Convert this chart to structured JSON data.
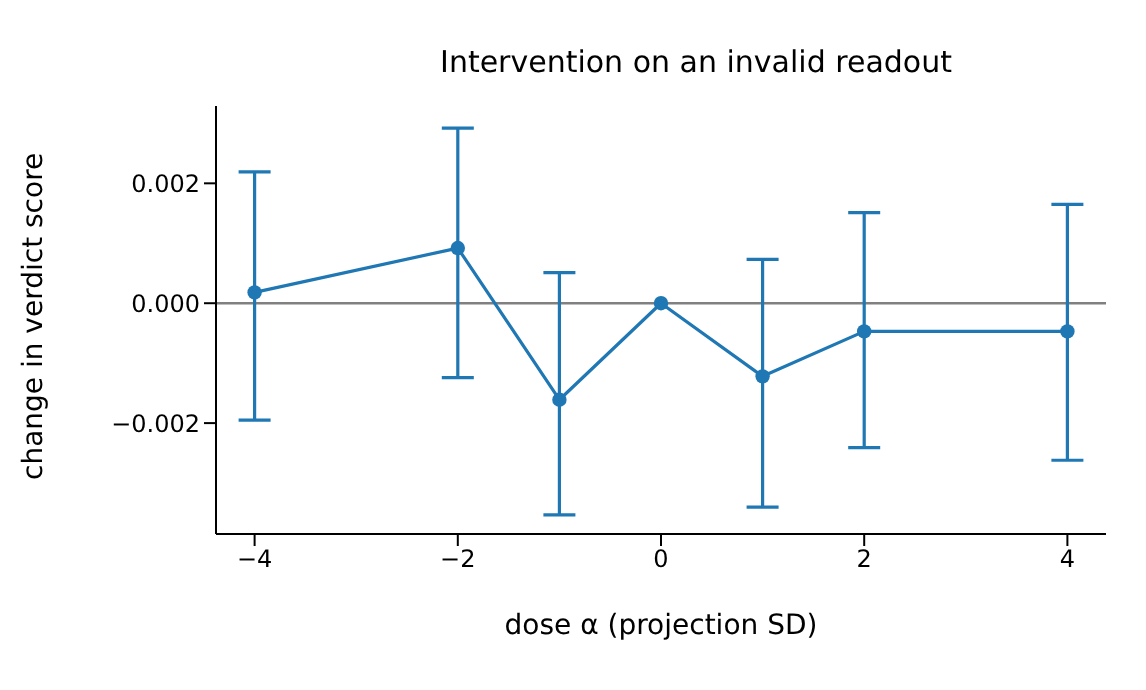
{
  "chart_data": {
    "type": "line",
    "title": "Intervention on an invalid readout",
    "xlabel": "dose α (projection SD)",
    "ylabel": "change in verdict score",
    "x": [
      -4,
      -2,
      -1,
      0,
      1,
      2,
      4
    ],
    "series": [
      {
        "color": "#1f77b4",
        "values": [
          0.00018,
          0.00092,
          -0.00161,
          0,
          -0.00122,
          -0.00047,
          -0.00047
        ],
        "errors": [
          [
            -0.00195,
            0.00219
          ],
          [
            -0.00124,
            0.00292
          ],
          [
            -0.00353,
            0.00051
          ],
          null,
          [
            -0.0034,
            0.00073
          ],
          [
            -0.00241,
            0.00151
          ],
          [
            -0.00262,
            0.00165
          ]
        ]
      }
    ],
    "xlim": [
      -4.38,
      4.38
    ],
    "xticks": [
      {
        "value": -4,
        "label": "−4"
      },
      {
        "value": -2,
        "label": "−2"
      },
      {
        "value": 0,
        "label": "0"
      },
      {
        "value": 2,
        "label": "2"
      },
      {
        "value": 4,
        "label": "4"
      }
    ],
    "ylim": [
      -0.00385,
      0.00329
    ],
    "yticks": [
      {
        "value": -0.002,
        "label": "−0.002"
      },
      {
        "value": 0,
        "label": "0.000"
      },
      {
        "value": 0.002,
        "label": "0.002"
      }
    ],
    "ref_lines": [
      {
        "axis": "y",
        "value": 0,
        "color": "#808080"
      }
    ],
    "grid": false,
    "legend": false,
    "marker": "circle",
    "line_style": "solid"
  }
}
